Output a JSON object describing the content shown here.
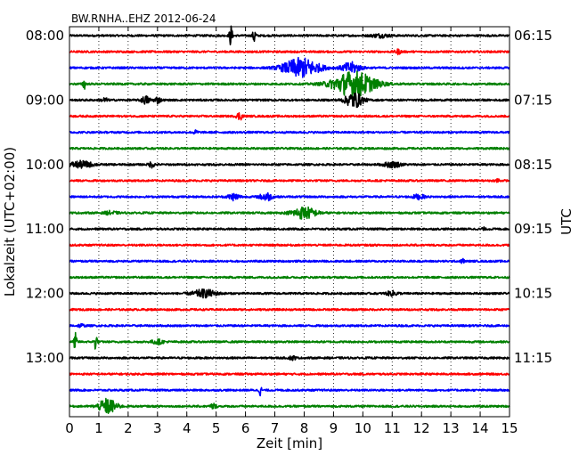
{
  "chart_data": {
    "type": "line",
    "title": "BW.RNHA..EHZ 2012-06-24",
    "xlabel": "Zeit  [min]",
    "ylabel_left": "Lokalzeit (UTC+02:00)",
    "ylabel_right": "UTC",
    "xlim": [
      0,
      15
    ],
    "x_ticks": [
      "0",
      "1",
      "2",
      "3",
      "4",
      "5",
      "6",
      "7",
      "8",
      "9",
      "10",
      "11",
      "12",
      "13",
      "14",
      "15"
    ],
    "grid": "vertical dotted",
    "trace_colors": [
      "#000000",
      "#ff0000",
      "#0000ff",
      "#008000"
    ],
    "row_count": 24,
    "left_ticks": [
      {
        "row": 0,
        "label": "08:00"
      },
      {
        "row": 4,
        "label": "09:00"
      },
      {
        "row": 8,
        "label": "10:00"
      },
      {
        "row": 12,
        "label": "11:00"
      },
      {
        "row": 16,
        "label": "12:00"
      },
      {
        "row": 20,
        "label": "13:00"
      }
    ],
    "right_ticks": [
      {
        "row": 0,
        "label": "06:15"
      },
      {
        "row": 4,
        "label": "07:15"
      },
      {
        "row": 8,
        "label": "08:15"
      },
      {
        "row": 12,
        "label": "09:15"
      },
      {
        "row": 16,
        "label": "10:15"
      },
      {
        "row": 20,
        "label": "11:15"
      }
    ],
    "events": [
      {
        "row": 0,
        "t": 5.5,
        "amp": 1.0,
        "dur": 0.05
      },
      {
        "row": 0,
        "t": 6.3,
        "amp": 0.8,
        "dur": 0.05
      },
      {
        "row": 0,
        "t": 10.6,
        "amp": 0.15,
        "dur": 0.3
      },
      {
        "row": 1,
        "t": 11.2,
        "amp": 0.2,
        "dur": 0.1
      },
      {
        "row": 2,
        "t": 7.9,
        "amp": 0.9,
        "dur": 0.6
      },
      {
        "row": 2,
        "t": 9.6,
        "amp": 0.5,
        "dur": 0.3
      },
      {
        "row": 3,
        "t": 0.5,
        "amp": 0.5,
        "dur": 0.05
      },
      {
        "row": 3,
        "t": 9.7,
        "amp": 1.2,
        "dur": 0.7
      },
      {
        "row": 4,
        "t": 2.6,
        "amp": 0.35,
        "dur": 0.15
      },
      {
        "row": 4,
        "t": 3.0,
        "amp": 0.3,
        "dur": 0.1
      },
      {
        "row": 4,
        "t": 1.2,
        "amp": 0.2,
        "dur": 0.1
      },
      {
        "row": 4,
        "t": 9.7,
        "amp": 0.7,
        "dur": 0.3
      },
      {
        "row": 5,
        "t": 5.8,
        "amp": 0.35,
        "dur": 0.1
      },
      {
        "row": 6,
        "t": 4.3,
        "amp": 0.15,
        "dur": 0.1
      },
      {
        "row": 8,
        "t": 0.4,
        "amp": 0.3,
        "dur": 0.4
      },
      {
        "row": 8,
        "t": 2.8,
        "amp": 0.25,
        "dur": 0.1
      },
      {
        "row": 8,
        "t": 11.0,
        "amp": 0.25,
        "dur": 0.3
      },
      {
        "row": 9,
        "t": 14.6,
        "amp": 0.25,
        "dur": 0.05
      },
      {
        "row": 10,
        "t": 5.6,
        "amp": 0.3,
        "dur": 0.2
      },
      {
        "row": 10,
        "t": 6.7,
        "amp": 0.4,
        "dur": 0.2
      },
      {
        "row": 10,
        "t": 11.9,
        "amp": 0.2,
        "dur": 0.2
      },
      {
        "row": 11,
        "t": 8.0,
        "amp": 0.55,
        "dur": 0.4
      },
      {
        "row": 11,
        "t": 1.4,
        "amp": 0.15,
        "dur": 0.2
      },
      {
        "row": 12,
        "t": 14.1,
        "amp": 0.15,
        "dur": 0.05
      },
      {
        "row": 14,
        "t": 13.4,
        "amp": 0.25,
        "dur": 0.05
      },
      {
        "row": 16,
        "t": 4.6,
        "amp": 0.35,
        "dur": 0.4
      },
      {
        "row": 16,
        "t": 11.0,
        "amp": 0.2,
        "dur": 0.2
      },
      {
        "row": 18,
        "t": 0.4,
        "amp": 0.15,
        "dur": 0.1
      },
      {
        "row": 19,
        "t": 0.2,
        "amp": 0.8,
        "dur": 0.05
      },
      {
        "row": 19,
        "t": 0.9,
        "amp": 0.9,
        "dur": 0.05
      },
      {
        "row": 19,
        "t": 3.0,
        "amp": 0.2,
        "dur": 0.2
      },
      {
        "row": 20,
        "t": 7.6,
        "amp": 0.2,
        "dur": 0.1
      },
      {
        "row": 22,
        "t": 6.5,
        "amp": 0.45,
        "dur": 0.05
      },
      {
        "row": 23,
        "t": 1.3,
        "amp": 0.7,
        "dur": 0.3
      },
      {
        "row": 23,
        "t": 4.9,
        "amp": 0.25,
        "dur": 0.1
      }
    ]
  }
}
